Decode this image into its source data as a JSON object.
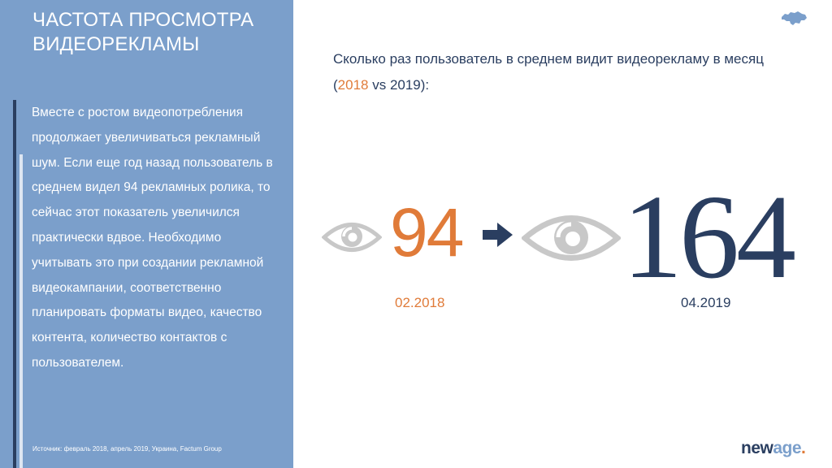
{
  "sidebar": {
    "title": "ЧАСТОТА ПРОСМОТРА ВИДЕОРЕКЛАМЫ",
    "body": "Вместе с ростом видеопотребления продолжает увеличиваться рекламный шум. Если еще год назад пользователь в среднем видел 94 рекламных ролика, то сейчас этот показатель увеличился практически вдвое. Необходимо учитывать это при создании рекламной видеокампании, соответственно планировать форматы видео, качество контента, количество контактов с пользователем.",
    "source": "Источник: февраль 2018, апрель 2019, Украина, Factum Group"
  },
  "question": {
    "prefix": "Сколько раз пользователь в среднем видит видеорекламу в месяц (",
    "year_a": "2018",
    "middle": " vs 2019",
    "suffix": "):"
  },
  "stats": {
    "before": {
      "value": "94",
      "date": "02.2018"
    },
    "after": {
      "value": "164",
      "date": "04.2019"
    }
  },
  "logo": {
    "part_a": "new",
    "part_b": "age",
    "dot": "."
  },
  "icons": {
    "eye": "eye-icon",
    "arrow": "arrow-right-icon",
    "map": "ukraine-map-icon"
  },
  "colors": {
    "sidebar_bg": "#7b9fcb",
    "navy": "#2a3e60",
    "orange": "#e07b39",
    "eye_gray": "#c8c8c8"
  }
}
